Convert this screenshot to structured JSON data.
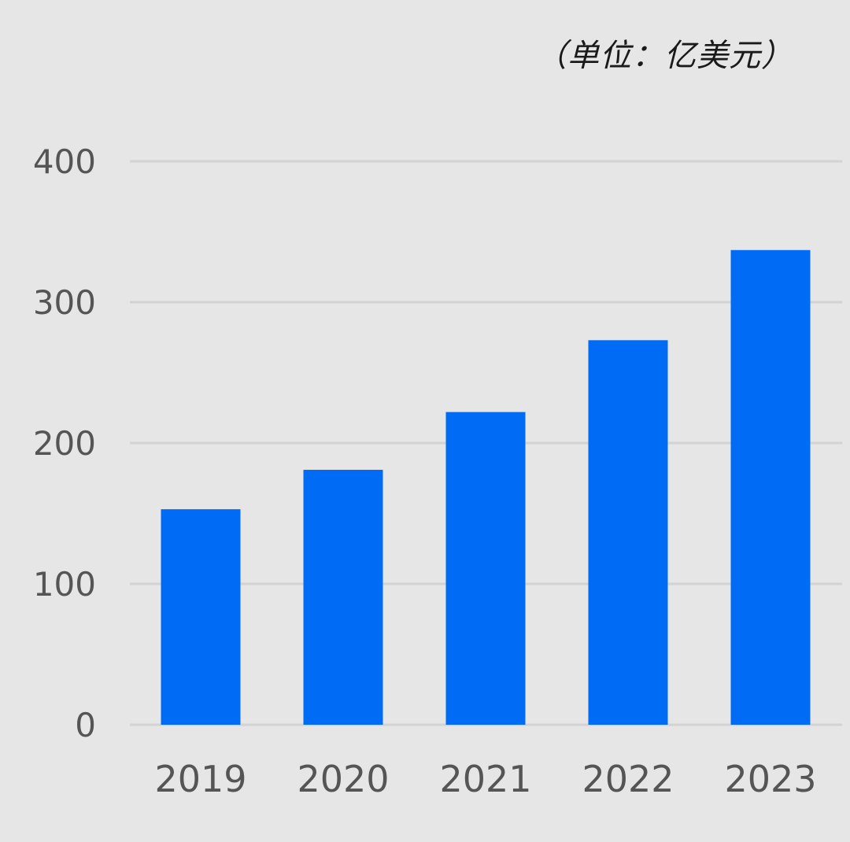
{
  "chart_data": {
    "type": "bar",
    "unit_label": "（单位：亿美元）",
    "categories": [
      "2019",
      "2020",
      "2021",
      "2022",
      "2023"
    ],
    "values": [
      153,
      181,
      222,
      273,
      337
    ],
    "yticks": [
      "0",
      "100",
      "200",
      "300",
      "400"
    ],
    "ylim": [
      0,
      400
    ],
    "grid": true,
    "colors": {
      "bar": "#006cf5",
      "grid": "#d3d3d3",
      "background": "#e6e6e6"
    }
  }
}
